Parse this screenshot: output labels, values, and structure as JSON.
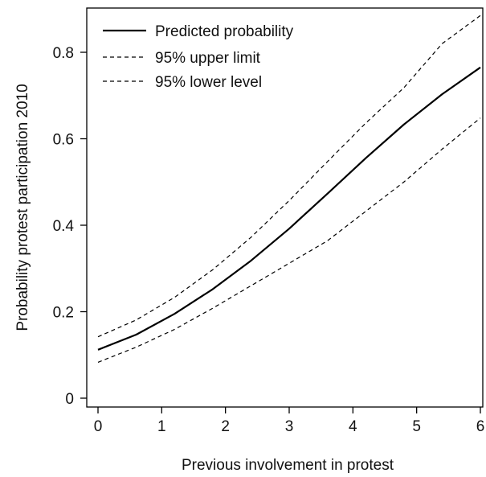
{
  "chart_data": {
    "type": "line",
    "title": "",
    "xlabel": "Previous involvement in protest",
    "ylabel": "Probability protest participation 2010",
    "xlim": [
      0,
      6
    ],
    "ylim": [
      0,
      0.88
    ],
    "xticks": [
      {
        "value": 0,
        "label": "0"
      },
      {
        "value": 1,
        "label": "1"
      },
      {
        "value": 2,
        "label": "2"
      },
      {
        "value": 3,
        "label": "3"
      },
      {
        "value": 4,
        "label": "4"
      },
      {
        "value": 5,
        "label": "5"
      },
      {
        "value": 6,
        "label": "6"
      }
    ],
    "yticks": [
      {
        "value": 0,
        "label": "0"
      },
      {
        "value": 0.2,
        "label": "0.2"
      },
      {
        "value": 0.4,
        "label": "0.4"
      },
      {
        "value": 0.6,
        "label": "0.6"
      },
      {
        "value": 0.8,
        "label": "0.8"
      }
    ],
    "grid": false,
    "legend_position": "top-left",
    "series": [
      {
        "name": "Predicted probability",
        "style": "solid",
        "color": "#000000",
        "x": [
          0,
          0.6,
          1.2,
          1.8,
          2.4,
          3.0,
          3.6,
          4.2,
          4.8,
          5.4,
          6.0
        ],
        "y": [
          0.112,
          0.147,
          0.195,
          0.252,
          0.318,
          0.392,
          0.473,
          0.555,
          0.633,
          0.703,
          0.765
        ]
      },
      {
        "name": "95% upper limit",
        "style": "dashed",
        "color": "#000000",
        "x": [
          0,
          0.6,
          1.2,
          1.8,
          2.4,
          3.0,
          3.6,
          4.2,
          4.8,
          5.4,
          6.0
        ],
        "y": [
          0.142,
          0.181,
          0.233,
          0.297,
          0.372,
          0.457,
          0.547,
          0.636,
          0.718,
          0.82,
          0.885
        ]
      },
      {
        "name": "95% lower level",
        "style": "dashed",
        "color": "#000000",
        "x": [
          0,
          0.6,
          1.2,
          1.8,
          2.4,
          3.0,
          3.6,
          4.2,
          4.8,
          5.4,
          6.0
        ],
        "y": [
          0.083,
          0.118,
          0.159,
          0.208,
          0.26,
          0.312,
          0.364,
          0.432,
          0.5,
          0.576,
          0.648
        ]
      }
    ]
  }
}
